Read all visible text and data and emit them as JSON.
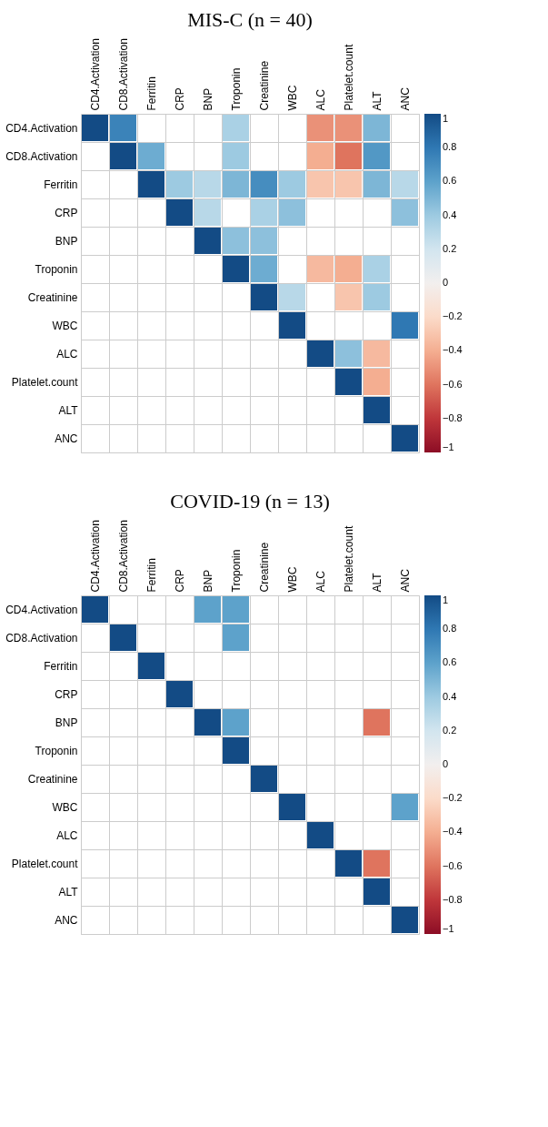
{
  "chart_data": [
    {
      "type": "heatmap",
      "title": "MIS-C (n = 40)",
      "categories": [
        "CD4.Activation",
        "CD8.Activation",
        "Ferritin",
        "CRP",
        "BNP",
        "Troponin",
        "Creatinine",
        "WBC",
        "ALC",
        "Platelet.count",
        "ALT",
        "ANC"
      ],
      "y_categories": [
        "CD4.Activation",
        "CD8.Activation",
        "Ferritin",
        "CRP",
        "BNP",
        "Troponin",
        "Creatinine",
        "WBC",
        "ALC",
        "Platelet.count",
        "ALT",
        "ANC"
      ],
      "cells": [
        [
          1,
          0.75,
          null,
          null,
          null,
          0.35,
          null,
          null,
          -0.5,
          -0.5,
          0.5,
          null
        ],
        [
          null,
          1,
          0.55,
          null,
          null,
          0.4,
          null,
          null,
          -0.4,
          -0.6,
          0.65,
          null
        ],
        [
          null,
          null,
          1,
          0.4,
          0.3,
          0.5,
          0.7,
          0.4,
          -0.3,
          -0.3,
          0.5,
          0.3
        ],
        [
          null,
          null,
          null,
          1,
          0.3,
          null,
          0.35,
          0.45,
          null,
          null,
          null,
          0.45
        ],
        [
          null,
          null,
          null,
          null,
          1,
          0.45,
          0.45,
          null,
          null,
          null,
          null,
          null
        ],
        [
          null,
          null,
          null,
          null,
          null,
          1,
          0.55,
          null,
          -0.35,
          -0.4,
          0.35,
          null
        ],
        [
          null,
          null,
          null,
          null,
          null,
          null,
          1,
          0.3,
          null,
          -0.3,
          0.4,
          null
        ],
        [
          null,
          null,
          null,
          null,
          null,
          null,
          null,
          1,
          null,
          null,
          null,
          0.8
        ],
        [
          null,
          null,
          null,
          null,
          null,
          null,
          null,
          null,
          1,
          0.45,
          -0.35,
          null
        ],
        [
          null,
          null,
          null,
          null,
          null,
          null,
          null,
          null,
          null,
          1,
          -0.4,
          null
        ],
        [
          null,
          null,
          null,
          null,
          null,
          null,
          null,
          null,
          null,
          null,
          1,
          null
        ],
        [
          null,
          null,
          null,
          null,
          null,
          null,
          null,
          null,
          null,
          null,
          null,
          1
        ]
      ],
      "clim": [
        -1,
        1
      ],
      "cticks": [
        {
          "value": -1,
          "label": "−1"
        },
        {
          "value": -0.8,
          "label": "−0.8"
        },
        {
          "value": -0.6,
          "label": "−0.6"
        },
        {
          "value": -0.4,
          "label": "−0.4"
        },
        {
          "value": -0.2,
          "label": "−0.2"
        },
        {
          "value": 0,
          "label": "0"
        },
        {
          "value": 0.2,
          "label": "0.2"
        },
        {
          "value": 0.4,
          "label": "0.4"
        },
        {
          "value": 0.6,
          "label": "0.6"
        },
        {
          "value": 0.8,
          "label": "0.8"
        },
        {
          "value": 1,
          "label": "1"
        }
      ],
      "grid": true
    },
    {
      "type": "heatmap",
      "title": "COVID-19 (n = 13)",
      "categories": [
        "CD4.Activation",
        "CD8.Activation",
        "Ferritin",
        "CRP",
        "BNP",
        "Troponin",
        "Creatinine",
        "WBC",
        "ALC",
        "Platelet.count",
        "ALT",
        "ANC"
      ],
      "y_categories": [
        "CD4.Activation",
        "CD8.Activation",
        "Ferritin",
        "CRP",
        "BNP",
        "Troponin",
        "Creatinine",
        "WBC",
        "ALC",
        "Platelet.count",
        "ALT",
        "ANC"
      ],
      "cells": [
        [
          1,
          null,
          null,
          null,
          0.6,
          0.6,
          null,
          null,
          null,
          null,
          null,
          null
        ],
        [
          null,
          1,
          null,
          null,
          null,
          0.6,
          null,
          null,
          null,
          null,
          null,
          null
        ],
        [
          null,
          null,
          1,
          null,
          null,
          null,
          null,
          null,
          null,
          null,
          null,
          null
        ],
        [
          null,
          null,
          null,
          1,
          null,
          null,
          null,
          null,
          null,
          null,
          null,
          null
        ],
        [
          null,
          null,
          null,
          null,
          1,
          0.6,
          null,
          null,
          null,
          null,
          -0.6,
          null
        ],
        [
          null,
          null,
          null,
          null,
          null,
          1,
          null,
          null,
          null,
          null,
          null,
          null
        ],
        [
          null,
          null,
          null,
          null,
          null,
          null,
          1,
          null,
          null,
          null,
          null,
          null
        ],
        [
          null,
          null,
          null,
          null,
          null,
          null,
          null,
          1,
          null,
          null,
          null,
          0.6
        ],
        [
          null,
          null,
          null,
          null,
          null,
          null,
          null,
          null,
          1,
          null,
          null,
          null
        ],
        [
          null,
          null,
          null,
          null,
          null,
          null,
          null,
          null,
          null,
          1,
          -0.6,
          null
        ],
        [
          null,
          null,
          null,
          null,
          null,
          null,
          null,
          null,
          null,
          null,
          1,
          null
        ],
        [
          null,
          null,
          null,
          null,
          null,
          null,
          null,
          null,
          null,
          null,
          null,
          1
        ]
      ],
      "clim": [
        -1,
        1
      ],
      "cticks": [
        {
          "value": -1,
          "label": "−1"
        },
        {
          "value": -0.8,
          "label": "−0.8"
        },
        {
          "value": -0.6,
          "label": "−0.6"
        },
        {
          "value": -0.4,
          "label": "−0.4"
        },
        {
          "value": -0.2,
          "label": "−0.2"
        },
        {
          "value": 0,
          "label": "0"
        },
        {
          "value": 0.2,
          "label": "0.2"
        },
        {
          "value": 0.4,
          "label": "0.4"
        },
        {
          "value": 0.6,
          "label": "0.6"
        },
        {
          "value": 0.8,
          "label": "0.8"
        },
        {
          "value": 1,
          "label": "1"
        }
      ],
      "grid": true
    }
  ]
}
